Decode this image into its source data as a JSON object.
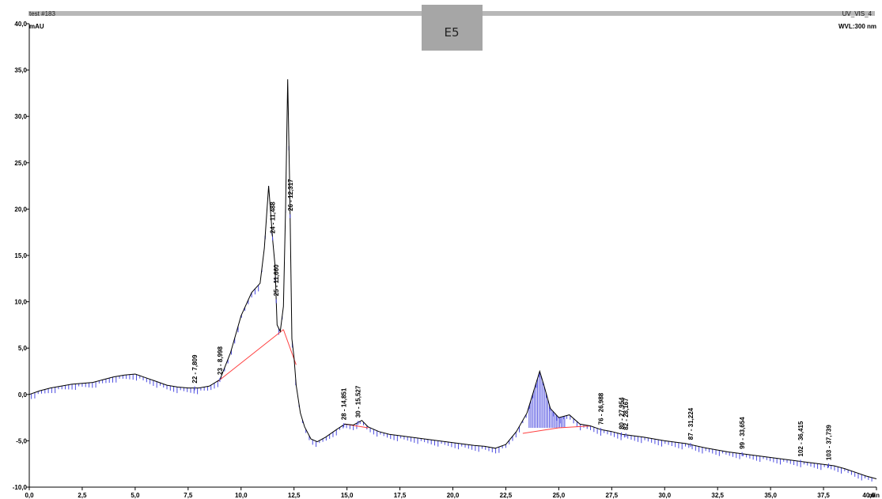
{
  "header": {
    "left_label": "test #183",
    "right_label": "UV_VIS_4",
    "y_unit": "mAU",
    "wavelength": "WVL:300 nm"
  },
  "badge": {
    "text": "E5",
    "color": "#a6a6a6"
  },
  "colors": {
    "trace": "#000000",
    "baseline": "#ff4040",
    "integration": "#4a4ae0",
    "band": "#a6a6a6"
  },
  "chart_data": {
    "type": "line",
    "title": "",
    "xlabel": "",
    "x_unit": "min",
    "ylabel": "mAU",
    "xlim": [
      0.0,
      40.0
    ],
    "ylim": [
      -10.0,
      40.0
    ],
    "grid": false,
    "x_ticks": [
      "0,0",
      "2,5",
      "5,0",
      "7,5",
      "10,0",
      "12,5",
      "15,0",
      "17,5",
      "20,0",
      "22,5",
      "25,0",
      "27,5",
      "30,0",
      "32,5",
      "35,0",
      "37,5",
      "40,0"
    ],
    "y_ticks": [
      "-10,0",
      "-5,0",
      "0,0",
      "5,0",
      "10,0",
      "15,0",
      "20,0",
      "25,0",
      "30,0",
      "35,0",
      "40,0"
    ],
    "series": [
      {
        "x": [
          0.0,
          0.5,
          1.0,
          1.5,
          2.0,
          2.5,
          3.0,
          3.5,
          4.0,
          4.5,
          5.0,
          5.5,
          6.0,
          6.5,
          7.0,
          7.5,
          8.0,
          8.5,
          9.0,
          9.5,
          10.0,
          10.5,
          10.9,
          11.1,
          11.3,
          11.5,
          11.6,
          11.7,
          11.85,
          12.0,
          12.1,
          12.2,
          12.3,
          12.4,
          12.5,
          12.6,
          12.8,
          13.0,
          13.3,
          13.6,
          14.0,
          14.5,
          14.9,
          15.3,
          15.7,
          16.0,
          16.5,
          17.0,
          18.0,
          19.0,
          20.0,
          21.0,
          21.5,
          22.0,
          22.5,
          23.0,
          23.5,
          23.9,
          24.1,
          24.3,
          24.6,
          25.0,
          25.5,
          26.0,
          26.5,
          27.0,
          27.5,
          28.0,
          29.0,
          30.0,
          31.0,
          32.0,
          33.0,
          34.0,
          35.0,
          36.0,
          37.0,
          38.0,
          38.5,
          39.0,
          39.5,
          40.0
        ],
        "y": [
          0.0,
          0.4,
          0.7,
          0.9,
          1.1,
          1.2,
          1.3,
          1.6,
          1.9,
          2.1,
          2.2,
          1.8,
          1.4,
          1.0,
          0.8,
          0.7,
          0.7,
          0.9,
          1.6,
          4.5,
          8.5,
          11.0,
          12.0,
          15.8,
          22.5,
          16.5,
          14.0,
          7.5,
          6.8,
          9.5,
          20.0,
          34.0,
          22.0,
          6.0,
          4.0,
          1.0,
          -2.0,
          -3.5,
          -4.8,
          -5.1,
          -4.6,
          -3.8,
          -3.2,
          -3.3,
          -2.8,
          -3.5,
          -4.0,
          -4.3,
          -4.6,
          -4.9,
          -5.2,
          -5.5,
          -5.6,
          -5.8,
          -5.4,
          -4.0,
          -2.0,
          1.0,
          2.5,
          1.0,
          -1.5,
          -2.5,
          -2.2,
          -3.2,
          -3.4,
          -3.8,
          -4.0,
          -4.3,
          -4.6,
          -5.0,
          -5.3,
          -5.8,
          -6.2,
          -6.5,
          -6.8,
          -7.1,
          -7.4,
          -7.7,
          -8.0,
          -8.4,
          -8.8,
          -9.1
        ]
      }
    ],
    "peak_labels": [
      {
        "text": "24 - 11,488",
        "x": 11.488
      },
      {
        "text": "25 - 11,660",
        "x": 11.66
      },
      {
        "text": "26 - 12,317",
        "x": 12.317
      },
      {
        "text": "22 - 7,809",
        "x": 7.809
      },
      {
        "text": "23 - 8,998",
        "x": 8.998
      },
      {
        "text": "28 - 14,851",
        "x": 14.851
      },
      {
        "text": "30 - 15,527",
        "x": 15.527
      },
      {
        "text": "76 - 26,988",
        "x": 26.988
      },
      {
        "text": "80 - 27,954",
        "x": 27.954
      },
      {
        "text": "82 - 28,167",
        "x": 28.167
      },
      {
        "text": "87 - 31,224",
        "x": 31.224
      },
      {
        "text": "99 - 33,654",
        "x": 33.654
      },
      {
        "text": "103 - 37,739",
        "x": 37.739
      },
      {
        "text": "102 - 36,415",
        "x": 36.415
      }
    ]
  }
}
